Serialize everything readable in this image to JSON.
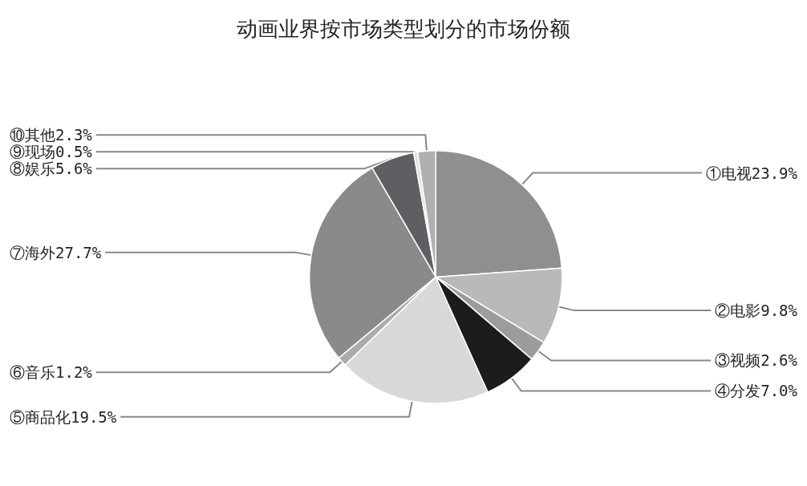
{
  "chart_data": {
    "type": "pie",
    "title": "动画业界按市场类型划分的市场份额",
    "categories": [
      "①电视",
      "②电影",
      "③视频",
      "④分发",
      "⑤商品化",
      "⑥音乐",
      "⑦海外",
      "⑧娱乐",
      "⑨现场",
      "⑩其他"
    ],
    "values": [
      23.9,
      9.8,
      2.6,
      7.0,
      19.5,
      1.2,
      27.7,
      5.6,
      0.5,
      2.3
    ],
    "value_labels": [
      "23.9%",
      "9.8%",
      "2.6%",
      "7.0%",
      "19.5%",
      "1.2%",
      "27.7%",
      "5.6%",
      "0.5%",
      "2.3%"
    ],
    "colors": [
      "#8f8f8f",
      "#b9b9b9",
      "#9c9c9c",
      "#1c1c1c",
      "#d8d8d8",
      "#ababab",
      "#8a8a8a",
      "#5f5f63",
      "#e0e0e0",
      "#b0b0b0"
    ],
    "legend": false
  }
}
